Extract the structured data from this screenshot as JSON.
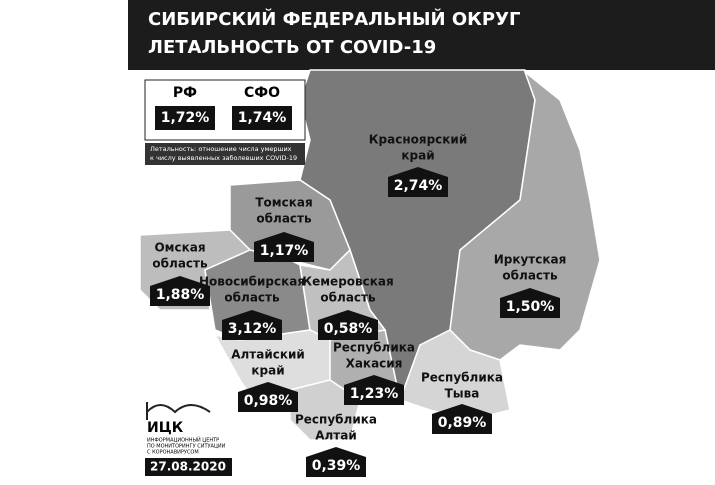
{
  "header": {
    "title_line1": "СИБИРСКИЙ ФЕДЕРАЛЬНЫЙ ОКРУГ",
    "title_line2": "ЛЕТАЛЬНОСТЬ ОТ COVID-19"
  },
  "summary": {
    "rf_label": "РФ",
    "rf_value": "1,72%",
    "sfo_label": "СФО",
    "sfo_value": "1,74%"
  },
  "note": {
    "line1": "Летальность: отношение числа умерших",
    "line2": "к числу выявленных заболевших COVID-19"
  },
  "regions": [
    {
      "name": [
        "Красноярский",
        "край"
      ],
      "value": "2,74%"
    },
    {
      "name": [
        "Иркутская",
        "область"
      ],
      "value": "1,50%"
    },
    {
      "name": [
        "Томская",
        "область"
      ],
      "value": "1,17%"
    },
    {
      "name": [
        "Омская",
        "область"
      ],
      "value": "1,88%"
    },
    {
      "name": [
        "Новосибирская",
        "область"
      ],
      "value": "3,12%"
    },
    {
      "name": [
        "Кемеровская",
        "область"
      ],
      "value": "0,58%"
    },
    {
      "name": [
        "Алтайский",
        "край"
      ],
      "value": "0,98%"
    },
    {
      "name": [
        "Республика",
        "Хакасия"
      ],
      "value": "1,23%"
    },
    {
      "name": [
        "Республика",
        "Тыва"
      ],
      "value": "0,89%"
    },
    {
      "name": [
        "Республика",
        "Алтай"
      ],
      "value": "0,39%"
    }
  ],
  "logo": {
    "abbr": "ИЦК",
    "line1": "ИНФОРМАЦИОННЫЙ ЦЕНТР",
    "line2": "ПО МОНИТОРИНГУ СИТУАЦИИ",
    "line3": "С КОРОНАВИРУСОМ"
  },
  "date": "27.08.2020"
}
